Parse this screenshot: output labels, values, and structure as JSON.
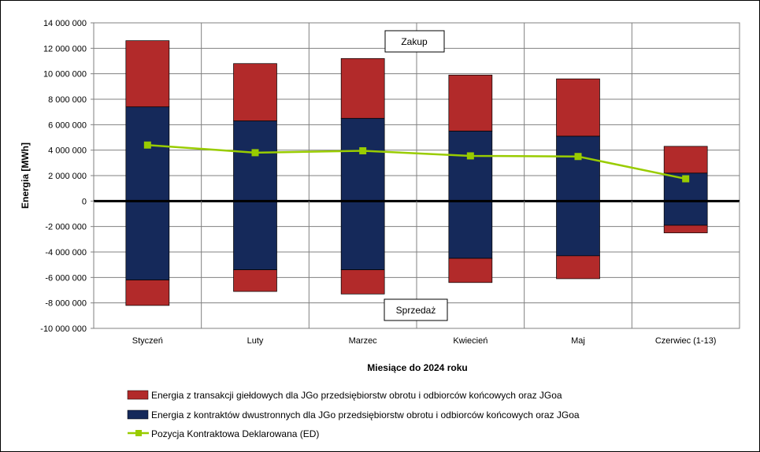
{
  "chart_data": {
    "type": "bar",
    "categories": [
      "Styczeń",
      "Luty",
      "Marzec",
      "Kwiecień",
      "Maj",
      "Czerwiec (1-13)"
    ],
    "ylabel": "Energia [MWh]",
    "xlabel": "Miesiące do 2024  roku",
    "ylim": [
      -10000000,
      14000000
    ],
    "ytick_step": 2000000,
    "ytick_labels": [
      "14 000 000",
      "12 000 000",
      "10 000 000",
      "8 000 000",
      "6 000 000",
      "4 000 000",
      "2 000 000",
      "0",
      "-2 000 000",
      "-4 000 000",
      "-6 000 000",
      "-8 000 000",
      "-10 000 000"
    ],
    "grid": true,
    "series": [
      {
        "name": "Energia z kontraktów dwustronnych dla JGo przedsiębiorstw obrotu i odbiorców końcowych oraz JGoa",
        "color": "#15295A",
        "purchase": [
          7400000,
          6300000,
          6500000,
          5500000,
          5100000,
          2200000
        ],
        "sale": [
          -6200000,
          -5400000,
          -5400000,
          -4500000,
          -4300000,
          -1900000
        ]
      },
      {
        "name": "Energia z transakcji giełdowych dla JGo przedsiębiorstw obrotu i odbiorców końcowych oraz JGoa",
        "color": "#B22A2A",
        "purchase": [
          5200000,
          4500000,
          4700000,
          4400000,
          4500000,
          2100000
        ],
        "sale": [
          -2000000,
          -1700000,
          -1900000,
          -1900000,
          -1800000,
          -600000
        ]
      },
      {
        "name": "Pozycja Kontraktowa Deklarowana (ED)",
        "color": "#99CC00",
        "type": "line",
        "values": [
          4400000,
          3800000,
          3950000,
          3550000,
          3500000,
          1750000
        ]
      }
    ],
    "annotations": {
      "top": "Zakup",
      "bottom": "Sprzedaż"
    },
    "legend_position": "bottom-left"
  }
}
